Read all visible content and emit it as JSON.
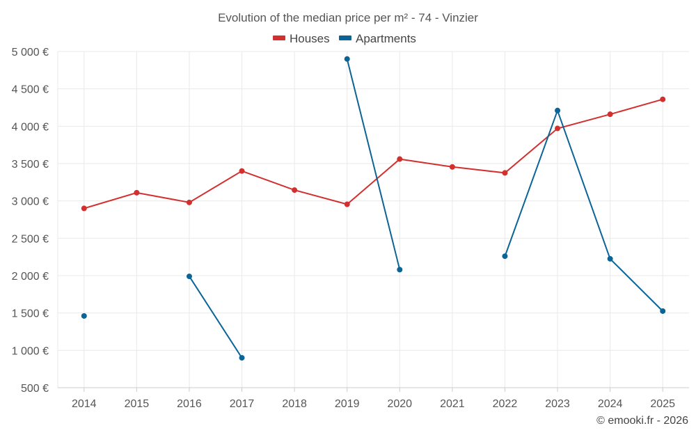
{
  "chart_data": {
    "type": "line",
    "title": "Evolution of the median price per m² - 74 - Vinzier",
    "categories": [
      "2014",
      "2015",
      "2016",
      "2017",
      "2018",
      "2019",
      "2020",
      "2021",
      "2022",
      "2023",
      "2024",
      "2025"
    ],
    "series": [
      {
        "name": "Houses",
        "color": "#d32f2f",
        "values": [
          2900,
          3110,
          2980,
          3400,
          3145,
          2955,
          3560,
          3455,
          3375,
          3970,
          4160,
          4360
        ]
      },
      {
        "name": "Apartments",
        "color": "#0a6496",
        "values": [
          1460,
          null,
          1990,
          900,
          null,
          4900,
          2080,
          null,
          2260,
          4210,
          2225,
          1525
        ]
      }
    ],
    "ylim": [
      500,
      5000
    ],
    "y_ticks": [
      500,
      1000,
      1500,
      2000,
      2500,
      3000,
      3500,
      4000,
      4500,
      5000
    ],
    "y_tick_labels": [
      "500 €",
      "1 000 €",
      "1 500 €",
      "2 000 €",
      "2 500 €",
      "3 000 €",
      "3 500 €",
      "4 000 €",
      "4 500 €",
      "5 000 €"
    ],
    "xlabel": "",
    "ylabel": "",
    "grid": true,
    "legend_position": "top-center",
    "credit": "© emooki.fr - 2026"
  }
}
